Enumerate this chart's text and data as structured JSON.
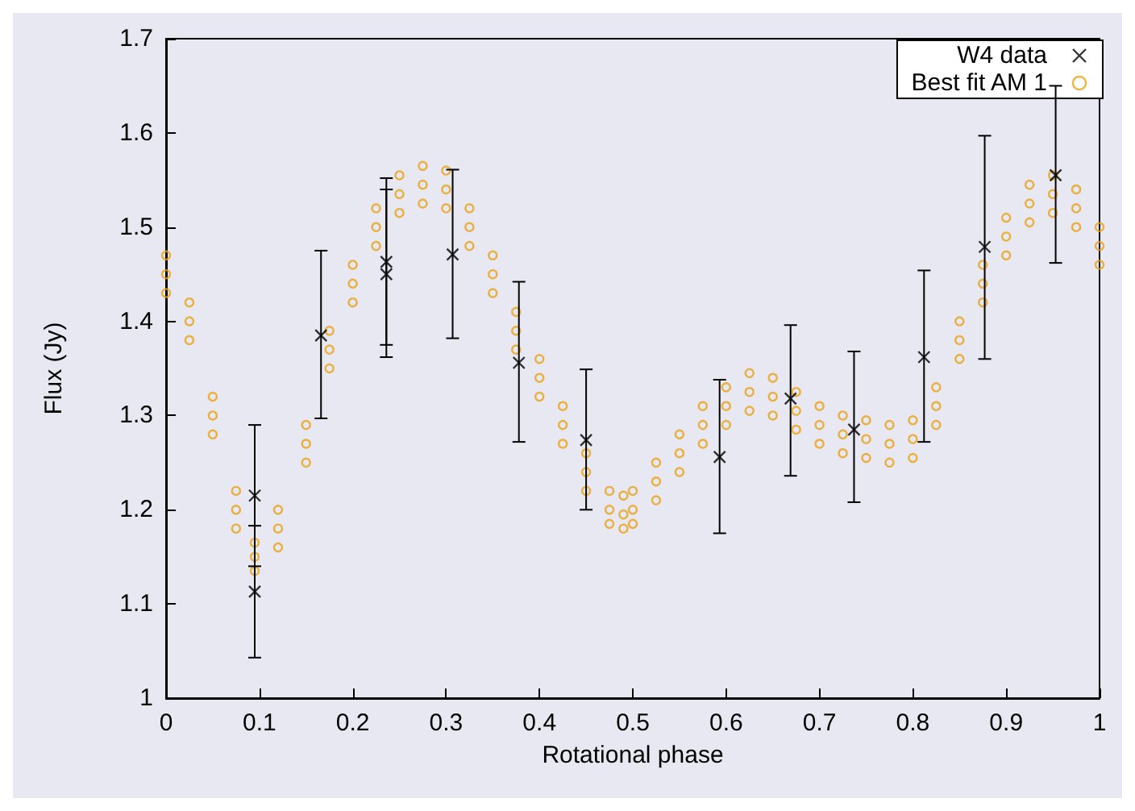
{
  "chart_data": {
    "type": "scatter",
    "xlabel": "Rotational phase",
    "ylabel": "Flux (Jy)",
    "xlim": [
      0,
      1
    ],
    "xticks": [
      0,
      0.1,
      0.2,
      0.3,
      0.4,
      0.5,
      0.6,
      0.7,
      0.8,
      0.9,
      1
    ],
    "ylim": [
      1,
      1.7
    ],
    "yticks": [
      1,
      1.1,
      1.2,
      1.3,
      1.4,
      1.5,
      1.6,
      1.7
    ],
    "grid": false,
    "legend": "top right",
    "series": [
      {
        "name": "W4 data",
        "color": "#000000",
        "marker": "cross",
        "x": [
          0.095,
          0.095,
          0.166,
          0.236,
          0.236,
          0.307,
          0.378,
          0.45,
          0.593,
          0.669,
          0.737,
          0.812,
          0.877,
          0.953
        ],
        "values": [
          1.215,
          1.113,
          1.385,
          1.463,
          1.45,
          1.471,
          1.356,
          1.274,
          1.256,
          1.318,
          1.285,
          1.362,
          1.479,
          1.555
        ],
        "errors": [
          [
            1.14,
            1.29
          ],
          [
            1.043,
            1.183
          ],
          [
            1.297,
            1.475
          ],
          [
            1.375,
            1.552
          ],
          [
            1.362,
            1.54
          ],
          [
            1.382,
            1.561
          ],
          [
            1.272,
            1.442
          ],
          [
            1.2,
            1.349
          ],
          [
            1.175,
            1.338
          ],
          [
            1.236,
            1.396
          ],
          [
            1.208,
            1.368
          ],
          [
            1.272,
            1.454
          ],
          [
            1.36,
            1.597
          ],
          [
            1.462,
            1.65
          ]
        ]
      },
      {
        "name": "Best fit AM 1",
        "color": "#e8a317",
        "marker": "circle",
        "x": [
          0,
          0.025,
          0.05,
          0.075,
          0.095,
          0.12,
          0.15,
          0.175,
          0.2,
          0.225,
          0.25,
          0.275,
          0.3,
          0.325,
          0.35,
          0.375,
          0.4,
          0.425,
          0.45,
          0.475,
          0.49,
          0.5,
          0.525,
          0.55,
          0.575,
          0.6,
          0.625,
          0.65,
          0.675,
          0.7,
          0.725,
          0.75,
          0.775,
          0.8,
          0.825,
          0.85,
          0.875,
          0.9,
          0.925,
          0.95,
          0.975,
          1
        ],
        "values": [
          1.45,
          1.4,
          1.3,
          1.2,
          1.15,
          1.18,
          1.27,
          1.37,
          1.44,
          1.5,
          1.535,
          1.545,
          1.54,
          1.5,
          1.45,
          1.39,
          1.34,
          1.29,
          1.24,
          1.2,
          1.195,
          1.2,
          1.23,
          1.26,
          1.29,
          1.31,
          1.325,
          1.32,
          1.305,
          1.29,
          1.28,
          1.275,
          1.27,
          1.275,
          1.31,
          1.38,
          1.44,
          1.49,
          1.525,
          1.535,
          1.52,
          1.48
        ]
      },
      {
        "color": "#e8a317",
        "marker": "circle",
        "x": [
          0,
          0.025,
          0.05,
          0.075,
          0.095,
          0.12,
          0.15,
          0.175,
          0.2,
          0.225,
          0.25,
          0.275,
          0.3,
          0.325,
          0.35,
          0.375,
          0.4,
          0.425,
          0.45,
          0.475,
          0.49,
          0.5,
          0.525,
          0.55,
          0.575,
          0.6,
          0.625,
          0.65,
          0.675,
          0.7,
          0.725,
          0.75,
          0.775,
          0.8,
          0.825,
          0.85,
          0.875,
          0.9,
          0.925,
          0.95,
          0.975,
          1
        ],
        "values": [
          1.47,
          1.42,
          1.32,
          1.22,
          1.165,
          1.2,
          1.29,
          1.39,
          1.46,
          1.52,
          1.555,
          1.565,
          1.56,
          1.52,
          1.47,
          1.41,
          1.36,
          1.31,
          1.26,
          1.22,
          1.215,
          1.22,
          1.25,
          1.28,
          1.31,
          1.33,
          1.345,
          1.34,
          1.325,
          1.31,
          1.3,
          1.295,
          1.29,
          1.295,
          1.33,
          1.4,
          1.46,
          1.51,
          1.545,
          1.555,
          1.54,
          1.5
        ]
      },
      {
        "color": "#e8a317",
        "marker": "circle",
        "x": [
          0,
          0.025,
          0.05,
          0.075,
          0.095,
          0.12,
          0.15,
          0.175,
          0.2,
          0.225,
          0.25,
          0.275,
          0.3,
          0.325,
          0.35,
          0.375,
          0.4,
          0.425,
          0.45,
          0.475,
          0.49,
          0.5,
          0.525,
          0.55,
          0.575,
          0.6,
          0.625,
          0.65,
          0.675,
          0.7,
          0.725,
          0.75,
          0.775,
          0.8,
          0.825,
          0.85,
          0.875,
          0.9,
          0.925,
          0.95,
          0.975,
          1
        ],
        "values": [
          1.43,
          1.38,
          1.28,
          1.18,
          1.135,
          1.16,
          1.25,
          1.35,
          1.42,
          1.48,
          1.515,
          1.525,
          1.52,
          1.48,
          1.43,
          1.37,
          1.32,
          1.27,
          1.22,
          1.185,
          1.18,
          1.185,
          1.21,
          1.24,
          1.27,
          1.29,
          1.305,
          1.3,
          1.285,
          1.27,
          1.26,
          1.255,
          1.25,
          1.255,
          1.29,
          1.36,
          1.42,
          1.47,
          1.505,
          1.515,
          1.5,
          1.46
        ]
      }
    ]
  }
}
